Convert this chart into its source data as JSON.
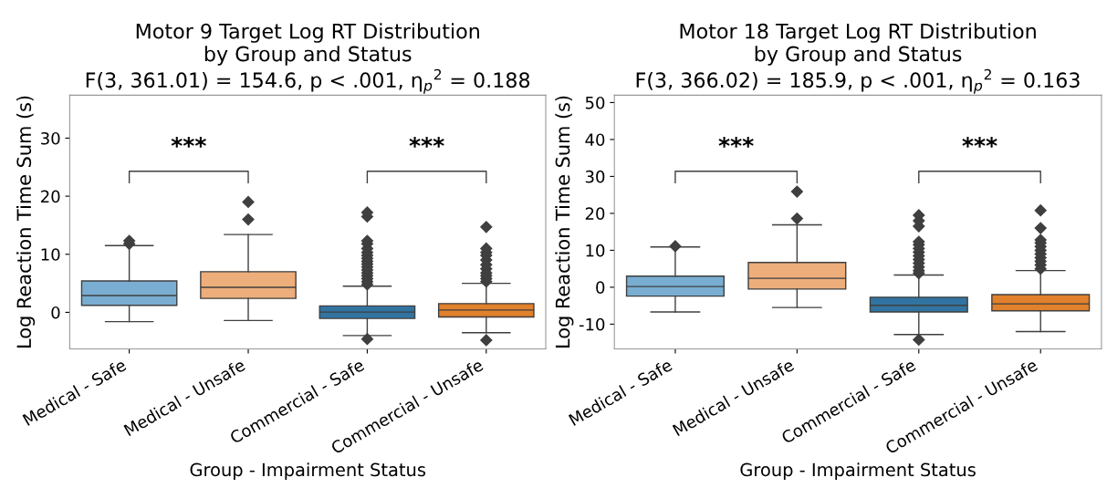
{
  "chart_data": [
    {
      "type": "box",
      "title": "Motor 9 Target Log RT Distribution\nby Group and Status\nF(3, 361.01) = 154.6, p < .001, η$_{p}$$^{2}$ = 0.188",
      "xlabel": "Group - Impairment Status",
      "ylabel": "Log Reaction Time Sum (s)",
      "categories": [
        "Medical - Safe",
        "Medical - Unsafe",
        "Commercial - Safe",
        "Commercial - Unsafe"
      ],
      "colors": [
        "#79aed2",
        "#edae7b",
        "#3274a1",
        "#e1812c"
      ],
      "boxes": [
        {
          "low": -1.6,
          "q1": 1.2,
          "median": 2.9,
          "q3": 5.4,
          "high": 11.5,
          "outliers": [
            11.8,
            12.3
          ]
        },
        {
          "low": -1.4,
          "q1": 2.4,
          "median": 4.3,
          "q3": 7.0,
          "high": 13.4,
          "outliers": [
            16.0,
            19.0
          ]
        },
        {
          "low": -4.0,
          "q1": -1.05,
          "median": 0.05,
          "q3": 1.1,
          "high": 4.5,
          "outliers": [
            -4.6,
            4.8,
            5.3,
            5.8,
            6.3,
            6.8,
            7.3,
            7.8,
            8.3,
            8.8,
            9.3,
            9.8,
            10.3,
            11.0,
            11.8,
            12.3,
            16.5,
            17.2
          ]
        },
        {
          "low": -3.5,
          "q1": -0.8,
          "median": 0.4,
          "q3": 1.5,
          "high": 5.0,
          "outliers": [
            -4.8,
            5.3,
            5.8,
            6.3,
            6.8,
            7.5,
            8.2,
            9.0,
            9.8,
            10.3,
            11.0,
            14.7
          ]
        }
      ],
      "ylim": [
        -6.3,
        37.4
      ],
      "yticks": [
        0,
        10,
        20,
        30
      ],
      "marker": "diamond",
      "annotations": [
        "***",
        "***"
      ]
    },
    {
      "type": "box",
      "title": "Motor 18 Target Log RT Distribution\nby Group and Status\nF(3, 366.02) = 185.9, p < .001, η$_{p}$$^{2}$ = 0.163",
      "xlabel": "Group - Impairment Status",
      "ylabel": "Log Reaction Time Sum (s)",
      "categories": [
        "Medical - Safe",
        "Medical - Unsafe",
        "Commercial - Safe",
        "Commercial - Unsafe"
      ],
      "colors": [
        "#79aed2",
        "#edae7b",
        "#3274a1",
        "#e1812c"
      ],
      "boxes": [
        {
          "low": -6.7,
          "q1": -2.4,
          "median": 0.2,
          "q3": 3.0,
          "high": 10.9,
          "outliers": [
            11.1
          ]
        },
        {
          "low": -5.5,
          "q1": -0.5,
          "median": 2.4,
          "q3": 6.7,
          "high": 16.9,
          "outliers": [
            18.6,
            25.9
          ]
        },
        {
          "low": -12.8,
          "q1": -6.7,
          "median": -4.9,
          "q3": -2.7,
          "high": 3.3,
          "outliers": [
            -14.2,
            3.8,
            4.5,
            5.5,
            6.5,
            7.5,
            8.5,
            9.5,
            10.5,
            11.5,
            12.3,
            16.5,
            18.0,
            19.5
          ]
        },
        {
          "low": -12.0,
          "q1": -6.4,
          "median": -4.5,
          "q3": -2.0,
          "high": 4.5,
          "outliers": [
            5.0,
            6.0,
            7.0,
            8.0,
            9.0,
            10.0,
            11.0,
            12.0,
            12.8,
            16.0,
            20.8
          ]
        }
      ],
      "ylim": [
        -16.7,
        52.0
      ],
      "yticks": [
        -10,
        0,
        10,
        20,
        30,
        40,
        50
      ],
      "marker": "diamond",
      "annotations": [
        "***",
        "***"
      ]
    }
  ]
}
